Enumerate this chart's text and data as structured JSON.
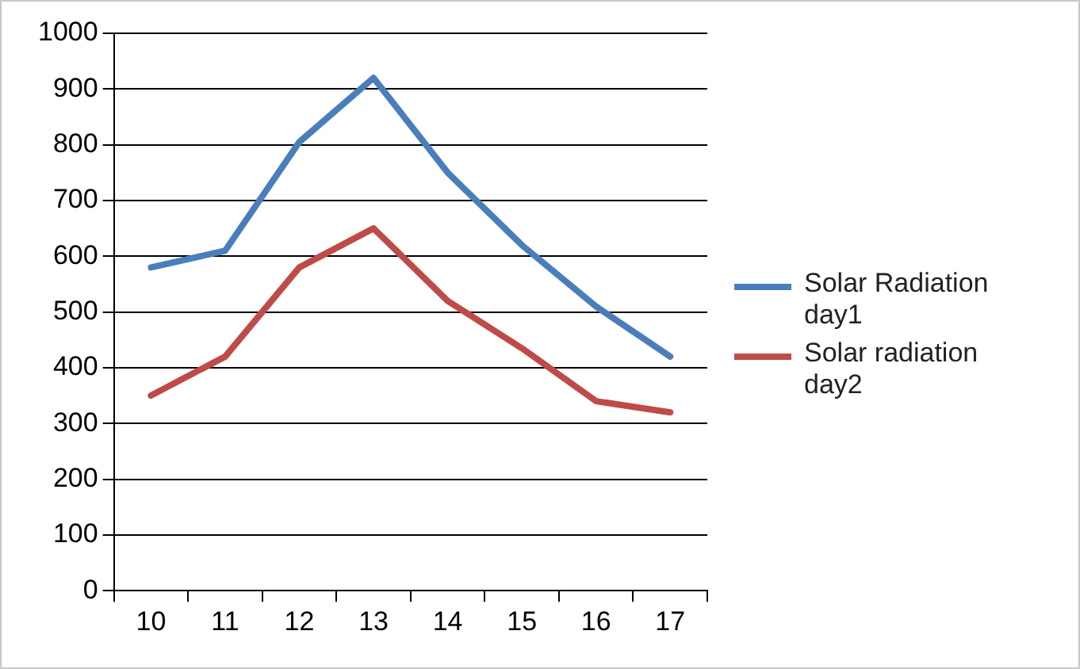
{
  "chart_data": {
    "type": "line",
    "categories": [
      "10",
      "11",
      "12",
      "13",
      "14",
      "15",
      "16",
      "17"
    ],
    "series": [
      {
        "name": "Solar Radiation day1",
        "color": "#4a7ebb",
        "values": [
          580,
          610,
          805,
          920,
          750,
          620,
          510,
          420
        ]
      },
      {
        "name": "Solar radiation day2",
        "color": "#be4b48",
        "values": [
          350,
          420,
          580,
          650,
          520,
          435,
          340,
          320
        ]
      }
    ],
    "ylim": [
      0,
      1000
    ],
    "yticks": [
      0,
      100,
      200,
      300,
      400,
      500,
      600,
      700,
      800,
      900,
      1000
    ],
    "grid": "y",
    "legend": "right",
    "marker": "none",
    "line_style": "solid"
  }
}
